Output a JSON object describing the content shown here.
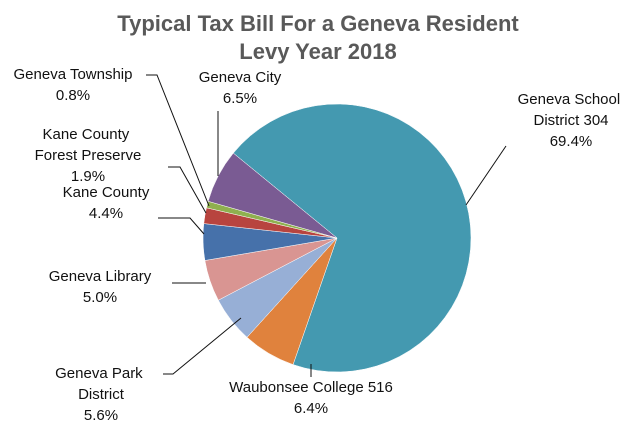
{
  "chart_data": {
    "type": "pie",
    "title": "Typical Tax Bill For a Geneva Resident",
    "subtitle": "Levy Year 2018",
    "categories": [
      "Geneva School District 304",
      "Waubonsee College 516",
      "Geneva Park District",
      "Geneva Library",
      "Kane County",
      "Kane County Forest Preserve",
      "Geneva Township",
      "Geneva City"
    ],
    "values": [
      69.4,
      6.4,
      5.6,
      5.0,
      4.4,
      1.9,
      0.8,
      6.5
    ],
    "value_labels": [
      "69.4%",
      "6.4%",
      "5.6%",
      "5.0%",
      "4.4%",
      "1.9%",
      "0.8%",
      "6.5%"
    ],
    "colors": [
      "#4499b0",
      "#e0823d",
      "#97afd6",
      "#d99592",
      "#4671aa",
      "#b8443f",
      "#8fb04f",
      "#7a5b93"
    ]
  }
}
